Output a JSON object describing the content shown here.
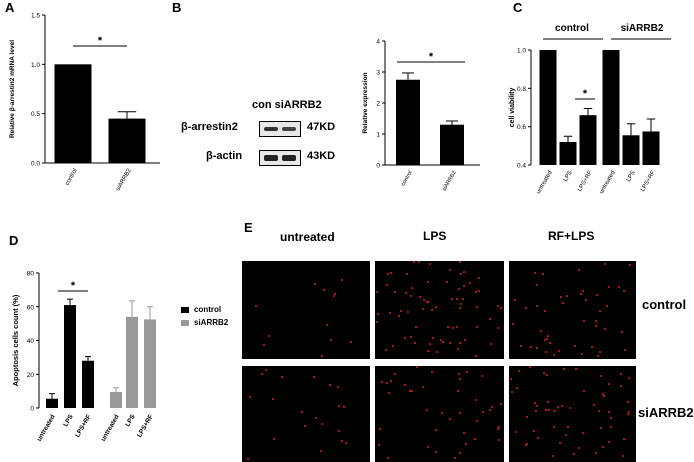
{
  "panels": {
    "a": "A",
    "b": "B",
    "c": "C",
    "d": "D",
    "e": "E"
  },
  "panel_a": {
    "ylabel": "Relative β-arrestin2 mRNA level",
    "yticks": [
      "0.0",
      "0.5",
      "1.0",
      "1.5"
    ],
    "sig": "*"
  },
  "panel_b": {
    "blot": {
      "header": "con siARRB2",
      "rows": [
        {
          "label": "β-arrestin2",
          "kd": "47KD"
        },
        {
          "label": "β-actin",
          "kd": "43KD"
        }
      ]
    },
    "ylabel": "Relative expression",
    "yticks": [
      "0",
      "1",
      "2",
      "3",
      "4"
    ],
    "sig": "*"
  },
  "panel_c": {
    "groups": [
      "control",
      "siARRB2"
    ],
    "ylabel": "cell viability",
    "yticks": [
      "0.4",
      "0.6",
      "0.8",
      "1.0"
    ],
    "sig": "*"
  },
  "panel_d": {
    "ylabel": "Apoptosis cells count (%)",
    "yticks": [
      "0",
      "20",
      "40",
      "60",
      "80"
    ],
    "legend": [
      {
        "name": "control",
        "color": "#000000"
      },
      {
        "name": "siARRB2",
        "color": "#999999"
      }
    ],
    "sig": "*"
  },
  "panel_e": {
    "columns": [
      "untreated",
      "LPS",
      "RF+LPS"
    ],
    "rows": [
      "control",
      "siARRB2"
    ],
    "dot_counts": [
      [
        12,
        70,
        45
      ],
      [
        20,
        40,
        55
      ]
    ],
    "dot_color": "#d9241e"
  },
  "chart_data": [
    {
      "panel": "A",
      "type": "bar",
      "categories": [
        "control",
        "siARRB2"
      ],
      "values": [
        1.0,
        0.45
      ],
      "errors": [
        0,
        0.07
      ],
      "ylabel": "Relative β-arrestin2 mRNA level",
      "ylim": [
        0,
        1.5
      ],
      "colors": [
        "#000000",
        "#000000"
      ]
    },
    {
      "panel": "B",
      "type": "bar",
      "categories": [
        "control",
        "siARRB2"
      ],
      "values": [
        2.75,
        1.3
      ],
      "errors": [
        0.22,
        0.12
      ],
      "ylabel": "Relative expression",
      "ylim": [
        0,
        4
      ],
      "colors": [
        "#000000",
        "#000000"
      ]
    },
    {
      "panel": "C",
      "type": "bar",
      "categories": [
        "untreated",
        "LPS",
        "LPS+RF",
        "untreated",
        "LPS",
        "LPS+RF"
      ],
      "values": [
        1.0,
        0.52,
        0.66,
        1.0,
        0.555,
        0.575
      ],
      "errors": [
        0,
        0.03,
        0.035,
        0,
        0.06,
        0.065
      ],
      "ylabel": "cell viability",
      "ylim": [
        0.4,
        1.0
      ],
      "colors": [
        "#000000",
        "#000000",
        "#000000",
        "#000000",
        "#000000",
        "#000000"
      ]
    },
    {
      "panel": "D",
      "type": "bar",
      "categories": [
        "untreated",
        "LPS",
        "LPS+RF",
        "untreated",
        "LPS",
        "LPS+RF"
      ],
      "values": [
        5.5,
        61,
        28,
        9.5,
        54,
        52.5
      ],
      "errors": [
        3,
        3.5,
        2.5,
        2.5,
        9.5,
        7.5
      ],
      "ylabel": "Apoptosis cells count (%)",
      "ylim": [
        0,
        80
      ],
      "colors": [
        "#000000",
        "#000000",
        "#000000",
        "#999999",
        "#999999",
        "#999999"
      ]
    }
  ]
}
